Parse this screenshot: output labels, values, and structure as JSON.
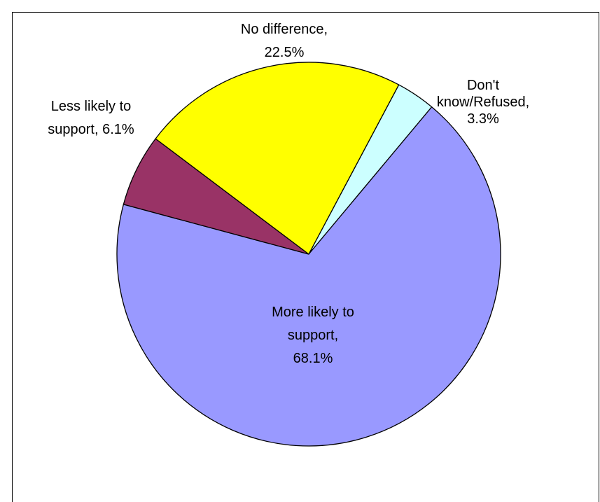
{
  "chart_data": {
    "type": "pie",
    "title": "",
    "slices": [
      {
        "label_lines": [
          "Don't",
          "know/Refused,",
          "3.3%"
        ],
        "value": 3.3,
        "color": "#CCFFFF"
      },
      {
        "label_lines": [
          "More likely to",
          "support,",
          "68.1%"
        ],
        "value": 68.1,
        "color": "#9999FF"
      },
      {
        "label_lines": [
          "Less likely to",
          "support, 6.1%"
        ],
        "value": 6.1,
        "color": "#993366"
      },
      {
        "label_lines": [
          "No difference,",
          "22.5%"
        ],
        "value": 22.5,
        "color": "#FFFF00"
      }
    ],
    "legend": "none",
    "label_placement": "outside-and-inside"
  }
}
